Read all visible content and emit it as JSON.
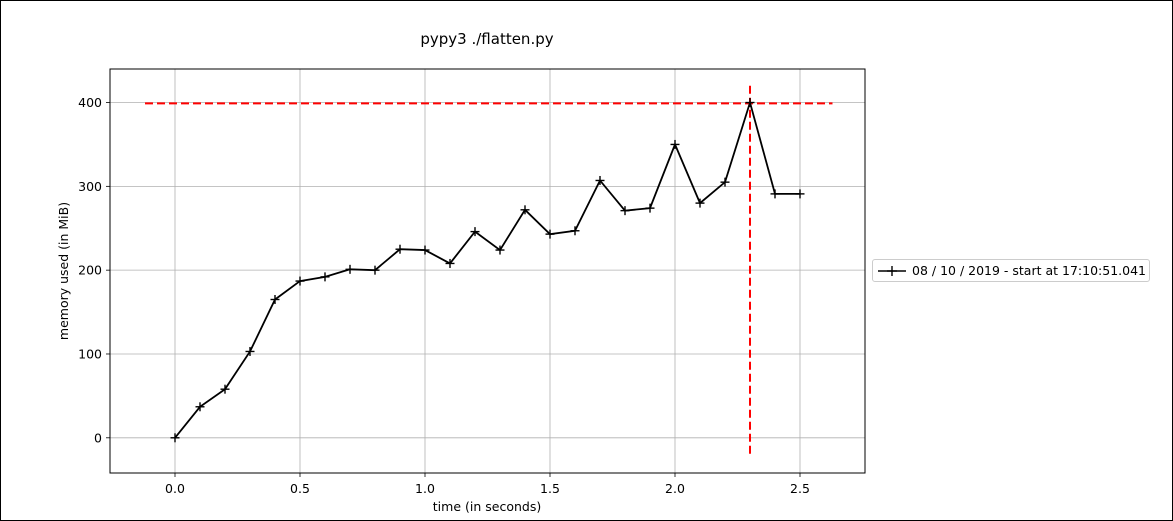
{
  "chart_data": {
    "type": "line",
    "title": "pypy3 ./flatten.py",
    "xlabel": "time (in seconds)",
    "ylabel": "memory used (in MiB)",
    "xlim": [
      -0.26,
      2.76
    ],
    "ylim": [
      -42,
      440
    ],
    "x_ticks": [
      0.0,
      0.5,
      1.0,
      1.5,
      2.0,
      2.5
    ],
    "x_tick_labels": [
      "0.0",
      "0.5",
      "1.0",
      "1.5",
      "2.0",
      "2.5"
    ],
    "y_ticks": [
      0,
      100,
      200,
      300,
      400
    ],
    "y_tick_labels": [
      "0",
      "100",
      "200",
      "300",
      "400"
    ],
    "grid": true,
    "legend_position": "right-outside",
    "series": [
      {
        "name": "08 / 10 / 2019 - start at 17:10:51.041",
        "color": "#000000",
        "marker": "+",
        "x": [
          0.0,
          0.1,
          0.2,
          0.3,
          0.4,
          0.5,
          0.6,
          0.7,
          0.8,
          0.9,
          1.0,
          1.1,
          1.2,
          1.3,
          1.4,
          1.5,
          1.6,
          1.7,
          1.8,
          1.9,
          2.0,
          2.1,
          2.2,
          2.3,
          2.4,
          2.5
        ],
        "y": [
          0,
          37,
          58,
          103,
          165,
          187,
          192,
          201,
          200,
          225,
          224,
          208,
          246,
          224,
          272,
          243,
          247,
          307,
          271,
          274,
          350,
          280,
          305,
          400,
          291,
          291
        ]
      }
    ],
    "annotations": [
      {
        "kind": "hline",
        "y": 399,
        "x_range": [
          -0.12,
          2.63
        ],
        "color": "#ff0000",
        "style": "dashed"
      },
      {
        "kind": "vline",
        "x": 2.3,
        "y_range": [
          -20,
          420
        ],
        "color": "#ff0000",
        "style": "dashed"
      }
    ]
  }
}
